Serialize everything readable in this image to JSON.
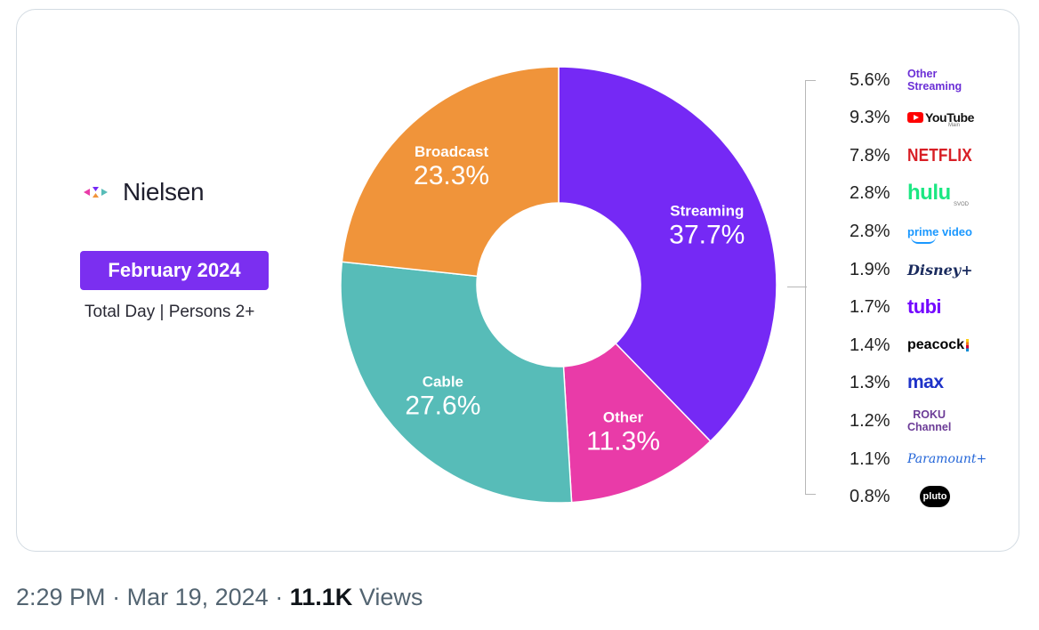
{
  "brand": {
    "name": "Nielsen"
  },
  "header": {
    "date_badge": "February 2024",
    "subtitle": "Total Day | Persons 2+"
  },
  "colors": {
    "streaming": "#7529f5",
    "other": "#e93ba8",
    "cable": "#57bcb8",
    "broadcast": "#f0943a",
    "badge": "#7b2ff0"
  },
  "chart_data": {
    "type": "pie",
    "donut": true,
    "slices": [
      {
        "label": "Streaming",
        "value_label": "37.7%",
        "value": 37.7,
        "color": "#7529f5"
      },
      {
        "label": "Other",
        "value_label": "11.3%",
        "value": 11.3,
        "color": "#e93ba8"
      },
      {
        "label": "Cable",
        "value_label": "27.6%",
        "value": 27.6,
        "color": "#57bcb8"
      },
      {
        "label": "Broadcast",
        "value_label": "23.3%",
        "value": 23.3,
        "color": "#f0943a"
      }
    ],
    "breakdown_of": "Streaming",
    "breakdown": [
      {
        "value_label": "5.6%",
        "value": 5.6,
        "brand": "Other Streaming",
        "brand_line1": "Other",
        "brand_line2": "Streaming"
      },
      {
        "value_label": "9.3%",
        "value": 9.3,
        "brand": "YouTube",
        "brand_sub": "Main"
      },
      {
        "value_label": "7.8%",
        "value": 7.8,
        "brand": "NETFLIX"
      },
      {
        "value_label": "2.8%",
        "value": 2.8,
        "brand": "hulu",
        "brand_sub": "SVOD"
      },
      {
        "value_label": "2.8%",
        "value": 2.8,
        "brand": "prime video"
      },
      {
        "value_label": "1.9%",
        "value": 1.9,
        "brand": "Disney+"
      },
      {
        "value_label": "1.7%",
        "value": 1.7,
        "brand": "tubi"
      },
      {
        "value_label": "1.4%",
        "value": 1.4,
        "brand": "peacock"
      },
      {
        "value_label": "1.3%",
        "value": 1.3,
        "brand": "max"
      },
      {
        "value_label": "1.2%",
        "value": 1.2,
        "brand": "Roku Channel",
        "brand_line1": "ROKU",
        "brand_line2": "Channel"
      },
      {
        "value_label": "1.1%",
        "value": 1.1,
        "brand": "Paramount+"
      },
      {
        "value_label": "0.8%",
        "value": 0.8,
        "brand": "pluto tv",
        "brand_short": "pluto"
      }
    ]
  },
  "footer": {
    "time": "2:29 PM",
    "date": "Mar 19, 2024",
    "views_count": "11.1K",
    "views_label": "Views",
    "separator": "·"
  }
}
